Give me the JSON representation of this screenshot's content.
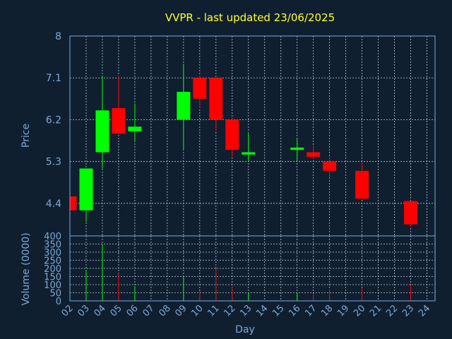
{
  "chart_data": {
    "type": "candlestick",
    "title": "VVPR - last updated 23/06/2025",
    "xlabel": "Day",
    "ylabel": "Price",
    "volume_label": "Volume (0000)",
    "ylim": [
      3.7,
      8
    ],
    "price_ticks": [
      "8",
      "7.1",
      "6.2",
      "5.3",
      "4.4"
    ],
    "price_tick_values": [
      8,
      7.1,
      6.2,
      5.3,
      4.4
    ],
    "volume_ylim": [
      0,
      400
    ],
    "volume_ticks": [
      0,
      50,
      100,
      150,
      200,
      250,
      300,
      350,
      400
    ],
    "grid": true,
    "colors": {
      "up": "#00ff00",
      "down": "#ff0000",
      "background": "#0f1f2f",
      "title": "#ffff33",
      "axis": "#7fa8d8"
    },
    "categories": [
      "02",
      "03",
      "04",
      "05",
      "06",
      "07",
      "08",
      "09",
      "10",
      "11",
      "12",
      "13",
      "14",
      "15",
      "16",
      "17",
      "18",
      "19",
      "20",
      "21",
      "22",
      "23",
      "24"
    ],
    "candles": [
      {
        "day": "02",
        "open": 4.55,
        "high": 4.55,
        "low": 4.25,
        "close": 4.25,
        "volume": 0
      },
      {
        "day": "03",
        "open": 4.25,
        "high": 5.15,
        "low": 4.0,
        "close": 5.15,
        "volume": 190
      },
      {
        "day": "04",
        "open": 5.5,
        "high": 7.15,
        "low": 5.15,
        "close": 6.4,
        "volume": 350
      },
      {
        "day": "05",
        "open": 6.45,
        "high": 7.15,
        "low": 5.9,
        "close": 5.9,
        "volume": 170
      },
      {
        "day": "06",
        "open": 5.95,
        "high": 6.55,
        "low": 5.75,
        "close": 6.05,
        "volume": 90
      },
      {
        "day": "09",
        "open": 6.2,
        "high": 7.4,
        "low": 5.55,
        "close": 6.8,
        "volume": 150
      },
      {
        "day": "10",
        "open": 7.1,
        "high": 7.15,
        "low": 6.45,
        "close": 6.65,
        "volume": 60
      },
      {
        "day": "11",
        "open": 7.1,
        "high": 7.1,
        "low": 5.95,
        "close": 6.2,
        "volume": 200
      },
      {
        "day": "12",
        "open": 6.2,
        "high": 6.25,
        "low": 5.4,
        "close": 5.55,
        "volume": 90
      },
      {
        "day": "13",
        "open": 5.45,
        "high": 5.9,
        "low": 5.3,
        "close": 5.5,
        "volume": 50
      },
      {
        "day": "16",
        "open": 5.55,
        "high": 5.8,
        "low": 5.3,
        "close": 5.6,
        "volume": 50
      },
      {
        "day": "17",
        "open": 5.5,
        "high": 5.65,
        "low": 5.35,
        "close": 5.4,
        "volume": 40
      },
      {
        "day": "18",
        "open": 5.3,
        "high": 5.4,
        "low": 4.95,
        "close": 5.1,
        "volume": 70
      },
      {
        "day": "20",
        "open": 5.1,
        "high": 5.3,
        "low": 4.5,
        "close": 4.5,
        "volume": 80
      },
      {
        "day": "23",
        "open": 4.45,
        "high": 4.45,
        "low": 3.9,
        "close": 3.95,
        "volume": 100
      }
    ]
  }
}
